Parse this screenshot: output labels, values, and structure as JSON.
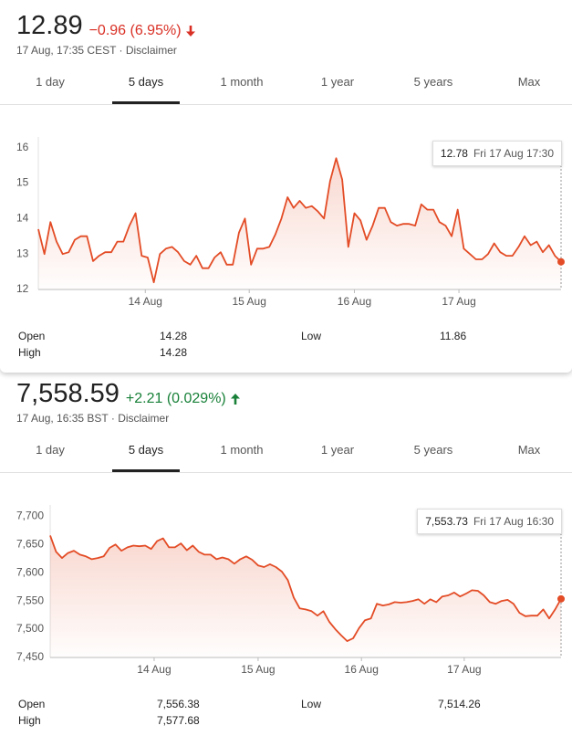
{
  "chart_data": [
    {
      "type": "line",
      "price": "12.89",
      "change": "−0.96 (6.95%)",
      "change_color": "#d93025",
      "change_direction": "down",
      "timestamp": "17 Aug, 17:35 CEST · Disclaimer",
      "tabs": [
        "1 day",
        "5 days",
        "1 month",
        "1 year",
        "5 years",
        "Max"
      ],
      "tooltip_value": "12.78",
      "tooltip_time": "Fri 17 Aug 17:30",
      "stats": [
        {
          "label": "Open",
          "value": "14.28"
        },
        {
          "label": "High",
          "value": "14.28"
        },
        {
          "label": "Low",
          "value": "11.86"
        }
      ],
      "color": "#e34c26",
      "x": [
        0,
        1,
        2,
        3,
        4,
        5,
        6,
        7,
        8,
        9,
        10,
        11,
        12,
        13,
        14,
        15,
        16,
        17,
        18,
        19,
        20,
        21,
        22,
        23,
        24,
        25,
        26,
        27,
        28,
        29,
        30,
        31,
        32,
        33,
        34,
        35,
        36,
        37,
        38,
        39,
        40,
        41,
        42,
        43,
        44,
        45,
        46,
        47,
        48,
        49,
        50,
        51,
        52,
        53,
        54,
        55,
        56,
        57,
        58,
        59,
        60,
        61,
        62,
        63,
        64,
        65,
        66,
        67,
        68,
        69,
        70,
        71,
        72,
        73,
        74,
        75,
        76,
        77,
        78,
        79,
        80,
        81,
        82,
        83,
        84,
        85,
        86
      ],
      "values": [
        13.7,
        13.0,
        13.9,
        13.35,
        13.0,
        13.05,
        13.4,
        13.5,
        13.5,
        12.8,
        12.95,
        13.05,
        13.05,
        13.35,
        13.35,
        13.8,
        14.15,
        12.95,
        12.9,
        12.2,
        13.0,
        13.15,
        13.2,
        13.05,
        12.8,
        12.7,
        12.95,
        12.6,
        12.6,
        12.9,
        13.05,
        12.7,
        12.7,
        13.6,
        14.0,
        12.7,
        13.15,
        13.15,
        13.2,
        13.55,
        14.0,
        14.6,
        14.3,
        14.5,
        14.3,
        14.35,
        14.2,
        14.0,
        15.05,
        15.7,
        15.1,
        13.2,
        14.15,
        13.95,
        13.4,
        13.8,
        14.3,
        14.3,
        13.9,
        13.8,
        13.85,
        13.85,
        13.8,
        14.4,
        14.25,
        14.25,
        13.9,
        13.8,
        13.5,
        14.25,
        13.15,
        13.0,
        12.85,
        12.85,
        13.0,
        13.3,
        13.05,
        12.95,
        12.95,
        13.2,
        13.5,
        13.25,
        13.35,
        13.05,
        13.25,
        12.95,
        12.78
      ],
      "xlim": [
        0,
        86
      ],
      "xticks": [
        {
          "value": 17.6,
          "label": "14 Aug"
        },
        {
          "value": 34.7,
          "label": "15 Aug"
        },
        {
          "value": 52.0,
          "label": "16 Aug"
        },
        {
          "value": 69.2,
          "label": "17 Aug"
        }
      ],
      "ylim": [
        12,
        16.3
      ],
      "yticks": [
        12,
        13,
        14,
        15,
        16
      ]
    },
    {
      "type": "line",
      "price": "7,558.59",
      "change": "+2.21 (0.029%)",
      "change_color": "#188038",
      "change_direction": "up",
      "timestamp": "17 Aug, 16:35 BST · Disclaimer",
      "tabs": [
        "1 day",
        "5 days",
        "1 month",
        "1 year",
        "5 years",
        "Max"
      ],
      "tooltip_value": "7,553.73",
      "tooltip_time": "Fri 17 Aug 16:30",
      "stats": [
        {
          "label": "Open",
          "value": "7,556.38"
        },
        {
          "label": "High",
          "value": "7,577.68"
        },
        {
          "label": "Low",
          "value": "7,514.26"
        }
      ],
      "color": "#e34c26",
      "x": [
        0,
        1,
        2,
        3,
        4,
        5,
        6,
        7,
        8,
        9,
        10,
        11,
        12,
        13,
        14,
        15,
        16,
        17,
        18,
        19,
        20,
        21,
        22,
        23,
        24,
        25,
        26,
        27,
        28,
        29,
        30,
        31,
        32,
        33,
        34,
        35,
        36,
        37,
        38,
        39,
        40,
        41,
        42,
        43,
        44,
        45,
        46,
        47,
        48,
        49,
        50,
        51,
        52,
        53,
        54,
        55,
        56,
        57,
        58,
        59,
        60,
        61,
        62,
        63,
        64,
        65,
        66,
        67,
        68,
        69,
        70,
        71,
        72,
        73,
        74,
        75,
        76,
        77,
        78,
        79,
        80,
        81,
        82,
        83,
        84,
        85,
        86
      ],
      "values": [
        7666,
        7637,
        7626,
        7635,
        7639,
        7632,
        7629,
        7624,
        7626,
        7629,
        7644,
        7650,
        7639,
        7645,
        7648,
        7647,
        7648,
        7642,
        7656,
        7661,
        7645,
        7645,
        7652,
        7640,
        7648,
        7637,
        7632,
        7632,
        7624,
        7627,
        7624,
        7616,
        7624,
        7629,
        7623,
        7613,
        7610,
        7615,
        7610,
        7602,
        7587,
        7556,
        7537,
        7535,
        7532,
        7524,
        7532,
        7513,
        7500,
        7489,
        7479,
        7484,
        7502,
        7516,
        7519,
        7545,
        7542,
        7544,
        7548,
        7547,
        7548,
        7550,
        7553,
        7545,
        7553,
        7548,
        7558,
        7560,
        7565,
        7558,
        7563,
        7569,
        7568,
        7560,
        7548,
        7545,
        7550,
        7552,
        7545,
        7529,
        7523,
        7524,
        7524,
        7535,
        7519,
        7535,
        7553.73
      ],
      "xlim": [
        0,
        86
      ],
      "xticks": [
        {
          "value": 17.5,
          "label": "14 Aug"
        },
        {
          "value": 35.0,
          "label": "15 Aug"
        },
        {
          "value": 52.4,
          "label": "16 Aug"
        },
        {
          "value": 69.7,
          "label": "17 Aug"
        }
      ],
      "ylim": [
        7450,
        7720
      ],
      "yticks": [
        {
          "value": 7450,
          "label": "7,450"
        },
        {
          "value": 7500,
          "label": "7,500"
        },
        {
          "value": 7550,
          "label": "7,550"
        },
        {
          "value": 7600,
          "label": "7,600"
        },
        {
          "value": 7650,
          "label": "7,650"
        },
        {
          "value": 7700,
          "label": "7,700"
        }
      ]
    }
  ]
}
